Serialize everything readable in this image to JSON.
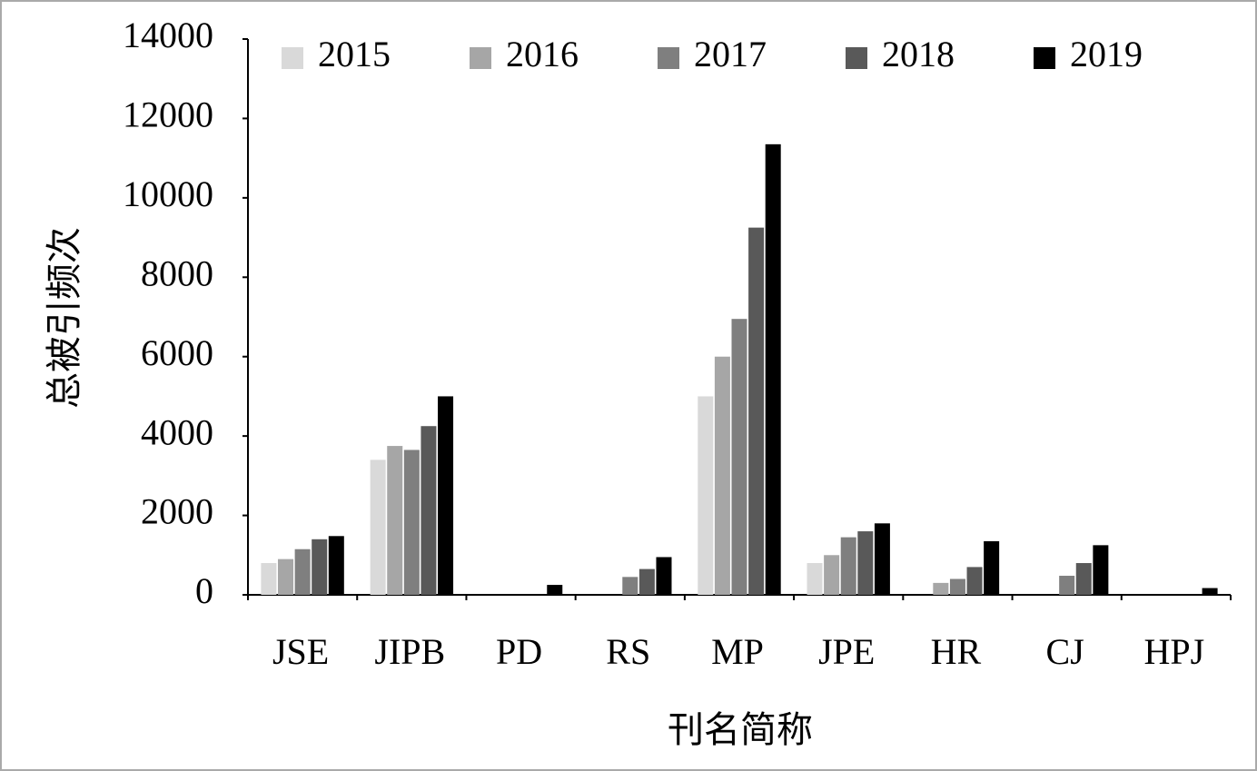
{
  "chart_data": {
    "type": "bar",
    "x_label": "刊名简称",
    "y_label": "总被引频次",
    "categories": [
      "JSE",
      "JIPB",
      "PD",
      "RS",
      "MP",
      "JPE",
      "HR",
      "CJ",
      "HPJ"
    ],
    "series": [
      {
        "name": "2015",
        "color": "#d9d9d9",
        "values": [
          800,
          3400,
          0,
          0,
          5000,
          800,
          0,
          0,
          0
        ]
      },
      {
        "name": "2016",
        "color": "#a6a6a6",
        "values": [
          900,
          3750,
          0,
          0,
          6000,
          1000,
          300,
          0,
          0
        ]
      },
      {
        "name": "2017",
        "color": "#7f7f7f",
        "values": [
          1150,
          3650,
          0,
          450,
          6950,
          1450,
          400,
          480,
          0
        ]
      },
      {
        "name": "2018",
        "color": "#595959",
        "values": [
          1400,
          4250,
          0,
          650,
          9250,
          1600,
          700,
          800,
          0
        ]
      },
      {
        "name": "2019",
        "color": "#000000",
        "values": [
          1480,
          5000,
          250,
          950,
          11350,
          1800,
          1350,
          1250,
          170
        ]
      }
    ],
    "ylim": [
      0,
      14000
    ],
    "yticks": [
      0,
      2000,
      4000,
      6000,
      8000,
      10000,
      12000,
      14000
    ],
    "grid": false,
    "legend": "top"
  }
}
